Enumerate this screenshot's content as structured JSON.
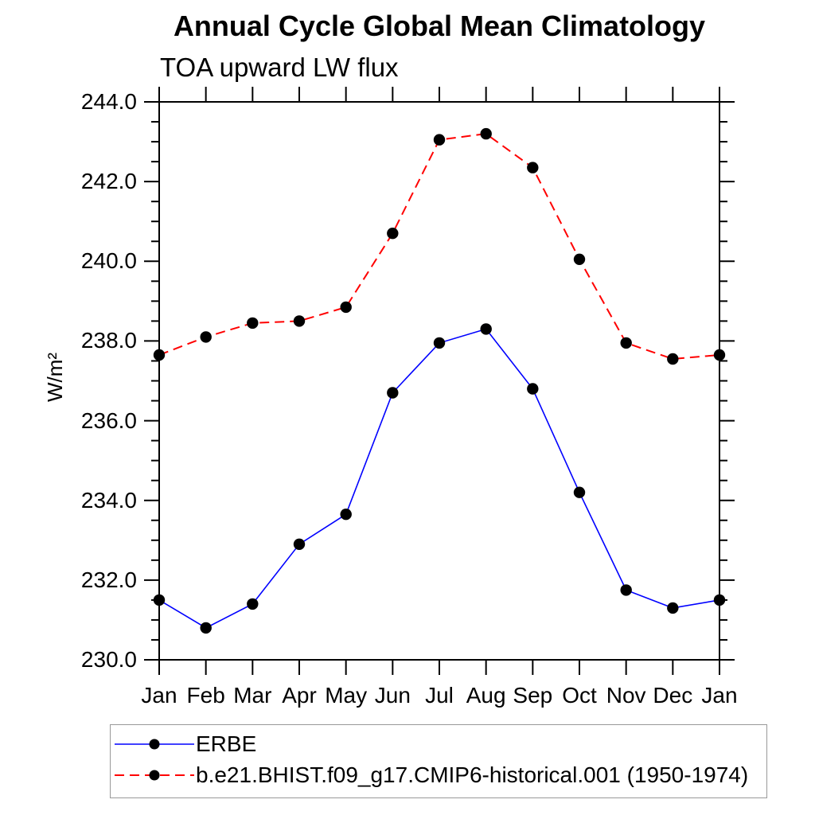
{
  "title": "Annual Cycle Global Mean Climatology",
  "subtitle": "TOA upward LW flux",
  "ylabel": "W/m²",
  "chart_data": {
    "type": "line",
    "categories": [
      "Jan",
      "Feb",
      "Mar",
      "Apr",
      "May",
      "Jun",
      "Jul",
      "Aug",
      "Sep",
      "Oct",
      "Nov",
      "Dec",
      "Jan"
    ],
    "series": [
      {
        "name": "ERBE",
        "color": "#0000ff",
        "line_style": "solid",
        "marker": "filled-circle",
        "marker_color": "#000000",
        "values": [
          231.5,
          230.8,
          231.4,
          232.9,
          233.65,
          236.7,
          237.95,
          238.3,
          236.8,
          234.2,
          231.75,
          231.3,
          231.5
        ]
      },
      {
        "name": "b.e21.BHIST.f09_g17.CMIP6-historical.001 (1950-1974)",
        "color": "#ff0000",
        "line_style": "dashed",
        "marker": "filled-circle",
        "marker_color": "#000000",
        "values": [
          237.65,
          238.1,
          238.45,
          238.5,
          238.85,
          240.7,
          243.05,
          243.2,
          242.35,
          240.05,
          237.95,
          237.55,
          237.65
        ]
      }
    ],
    "ylim": [
      230.0,
      244.0
    ],
    "ytick_major_step": 2.0,
    "ytick_minor_step": 0.5,
    "ytick_labels": [
      "230.0",
      "232.0",
      "234.0",
      "236.0",
      "238.0",
      "240.0",
      "242.0",
      "244.0"
    ],
    "xlabel": "",
    "grid": false,
    "legend_position": "bottom-left",
    "axis_color": "#000000"
  }
}
